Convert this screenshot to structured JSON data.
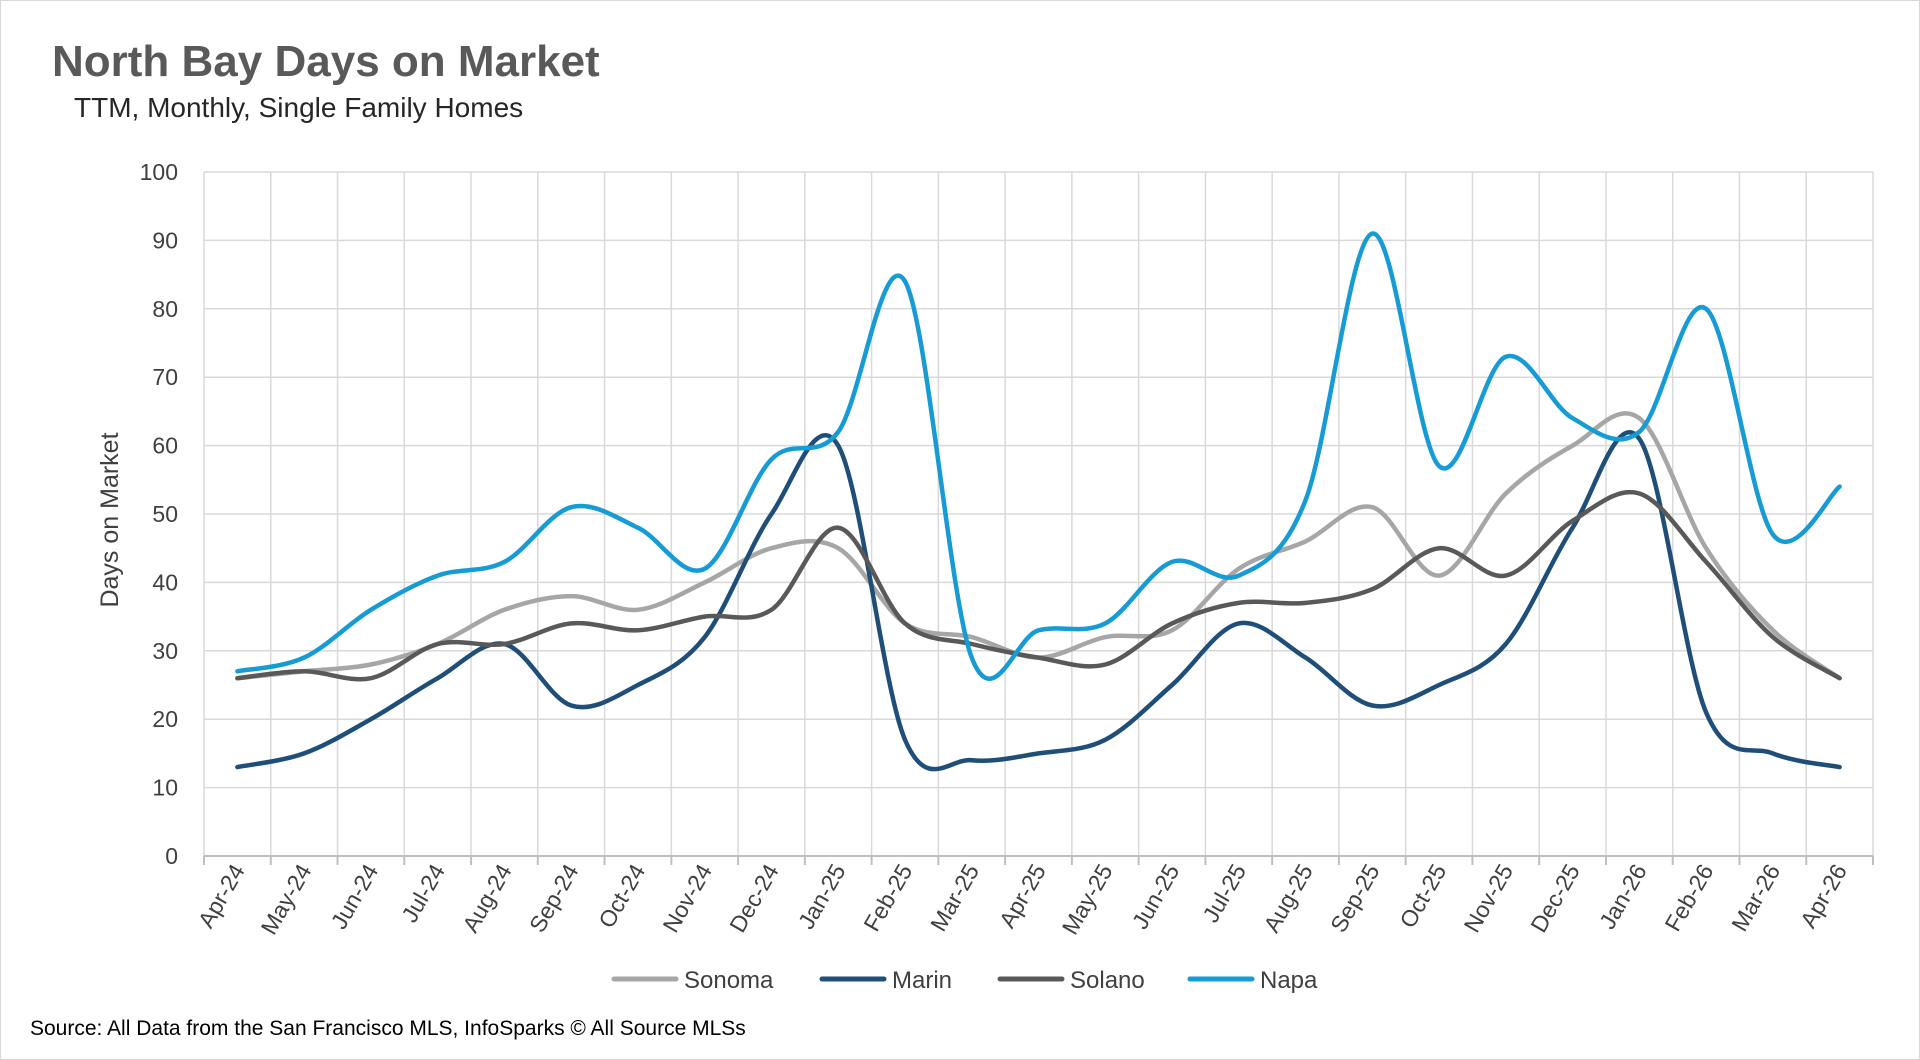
{
  "title": "North Bay Days on Market",
  "subtitle": "TTM, Monthly, Single Family Homes",
  "source": "Source: All Data from the San Francisco MLS, InfoSparks © All Source MLSs",
  "chart_data": {
    "type": "line",
    "title": "North Bay Days on Market",
    "subtitle": "TTM, Monthly, Single Family Homes",
    "xlabel": "",
    "ylabel": "Days on Market",
    "ylim": [
      0,
      100
    ],
    "yticks": [
      0,
      10,
      20,
      30,
      40,
      50,
      60,
      70,
      80,
      90,
      100
    ],
    "grid": true,
    "legend_position": "bottom",
    "categories": [
      "Apr-24",
      "May-24",
      "Jun-24",
      "Jul-24",
      "Aug-24",
      "Sep-24",
      "Oct-24",
      "Nov-24",
      "Dec-24",
      "Jan-25",
      "Feb-25",
      "Mar-25",
      "Apr-25",
      "May-25",
      "Jun-25",
      "Jul-25",
      "Aug-25",
      "Sep-25",
      "Oct-25",
      "Nov-25",
      "Dec-25",
      "Jan-26",
      "Feb-26",
      "Mar-26",
      "Apr-26"
    ],
    "series": [
      {
        "name": "Sonoma",
        "color": "#a6a6a6",
        "values": [
          26,
          27,
          28,
          31,
          36,
          38,
          36,
          40,
          45,
          45,
          34,
          32,
          29,
          32,
          33,
          42,
          46,
          51,
          41,
          53,
          60,
          64,
          45,
          33,
          26
        ]
      },
      {
        "name": "Marin",
        "color": "#1f4e79",
        "values": [
          13,
          15,
          20,
          26,
          31,
          22,
          25,
          32,
          50,
          60,
          17,
          14,
          15,
          17,
          25,
          34,
          29,
          22,
          25,
          31,
          48,
          61,
          21,
          15,
          13
        ]
      },
      {
        "name": "Solano",
        "color": "#595959",
        "values": [
          26,
          27,
          26,
          31,
          31,
          34,
          33,
          35,
          36,
          48,
          34,
          31,
          29,
          28,
          34,
          37,
          37,
          39,
          45,
          41,
          49,
          53,
          43,
          32,
          26
        ]
      },
      {
        "name": "Napa",
        "color": "#169bd5",
        "values": [
          27,
          29,
          36,
          41,
          43,
          51,
          48,
          42,
          58,
          62,
          84,
          29,
          33,
          34,
          43,
          41,
          52,
          91,
          57,
          73,
          64,
          62,
          80,
          47,
          54
        ]
      }
    ]
  }
}
